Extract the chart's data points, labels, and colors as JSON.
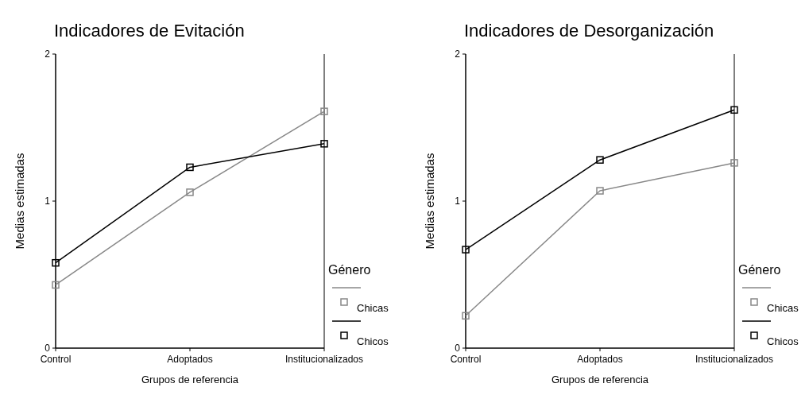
{
  "chart_data": [
    {
      "type": "line",
      "title": "Indicadores de Evitación",
      "xlabel": "Grupos de referencia",
      "ylabel": "Medias estimadas",
      "legend_title": "Género",
      "categories": [
        "Control",
        "Adoptados",
        "Institucionalizados"
      ],
      "ylim": [
        0,
        2
      ],
      "yticks": [
        0,
        1,
        2
      ],
      "legend": "right",
      "marker": "square",
      "grid": false,
      "series": [
        {
          "name": "Chicas",
          "color": "#888888",
          "values": [
            0.43,
            1.06,
            1.61
          ]
        },
        {
          "name": "Chicos",
          "color": "#000000",
          "values": [
            0.58,
            1.23,
            1.39
          ]
        }
      ]
    },
    {
      "type": "line",
      "title": "Indicadores de Desorganización",
      "xlabel": "Grupos de referencia",
      "ylabel": "Medias estimadas",
      "legend_title": "Género",
      "categories": [
        "Control",
        "Adoptados",
        "Institucionalizados"
      ],
      "ylim": [
        0,
        2
      ],
      "yticks": [
        0,
        1,
        2
      ],
      "legend": "right",
      "marker": "square",
      "grid": false,
      "series": [
        {
          "name": "Chicas",
          "color": "#888888",
          "values": [
            0.22,
            1.07,
            1.26
          ]
        },
        {
          "name": "Chicos",
          "color": "#000000",
          "values": [
            0.67,
            1.28,
            1.62
          ]
        }
      ]
    }
  ]
}
